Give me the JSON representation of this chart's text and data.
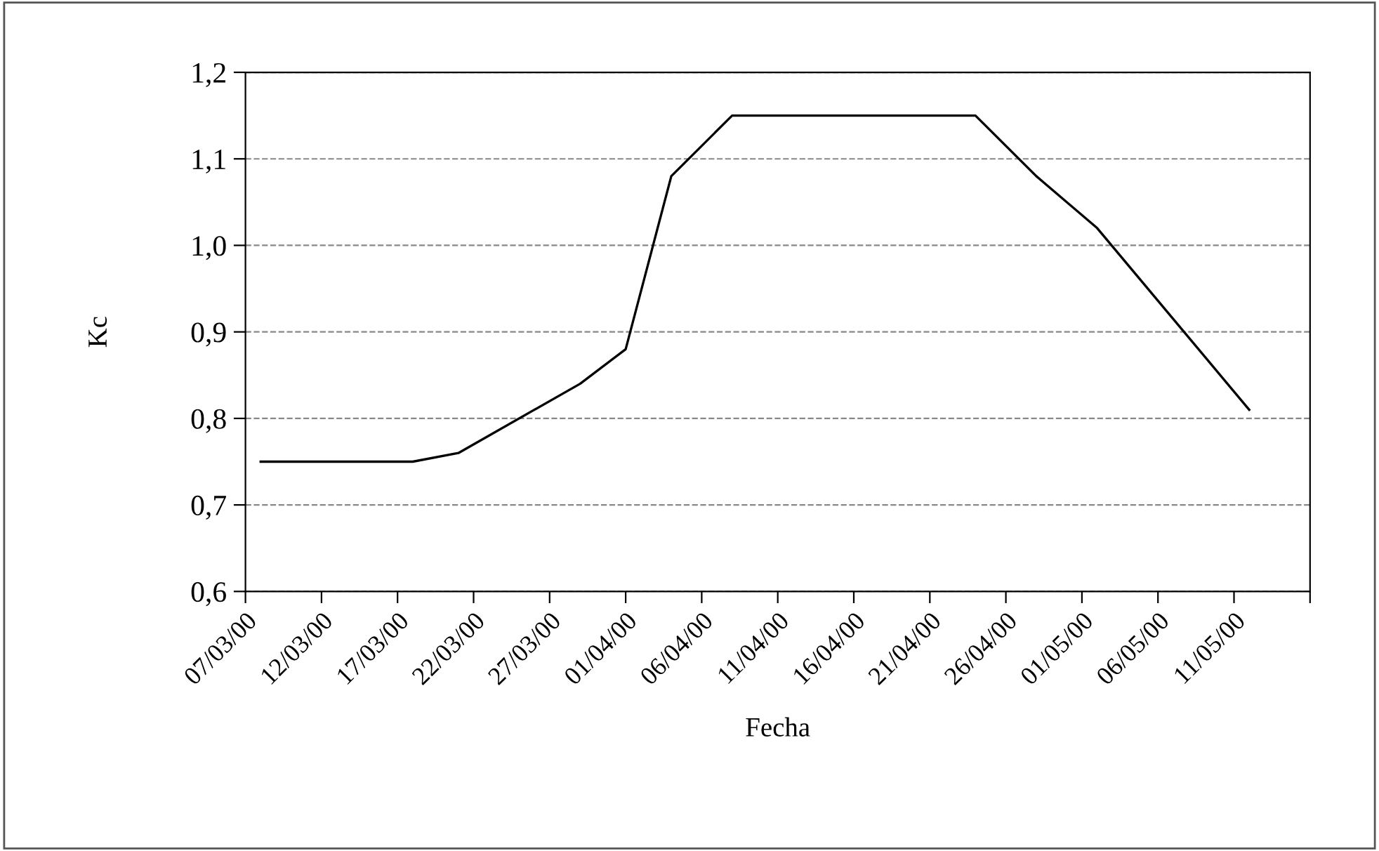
{
  "chart_data": {
    "type": "line",
    "xlabel": "Fecha",
    "ylabel": "Kc",
    "x": [
      "2000-03-08",
      "2000-03-18",
      "2000-03-21",
      "2000-03-29",
      "2000-04-01",
      "2000-04-04",
      "2000-04-08",
      "2000-04-24",
      "2000-04-28",
      "2000-05-02",
      "2000-05-12"
    ],
    "series": [
      {
        "color": "#000000",
        "values": [
          0.75,
          0.75,
          0.76,
          0.84,
          0.88,
          1.08,
          1.15,
          1.15,
          1.08,
          1.02,
          0.81
        ]
      }
    ],
    "xlim": [
      "2000-03-07",
      "2000-05-16"
    ],
    "xticks": [
      {
        "value": "2000-03-07",
        "label": "07/03/00"
      },
      {
        "value": "2000-03-12",
        "label": "12/03/00"
      },
      {
        "value": "2000-03-17",
        "label": "17/03/00"
      },
      {
        "value": "2000-03-22",
        "label": "22/03/00"
      },
      {
        "value": "2000-03-27",
        "label": "27/03/00"
      },
      {
        "value": "2000-04-01",
        "label": "01/04/00"
      },
      {
        "value": "2000-04-06",
        "label": "06/04/00"
      },
      {
        "value": "2000-04-11",
        "label": "11/04/00"
      },
      {
        "value": "2000-04-16",
        "label": "16/04/00"
      },
      {
        "value": "2000-04-21",
        "label": "21/04/00"
      },
      {
        "value": "2000-04-26",
        "label": "26/04/00"
      },
      {
        "value": "2000-05-01",
        "label": "01/05/00"
      },
      {
        "value": "2000-05-06",
        "label": "06/05/00"
      },
      {
        "value": "2000-05-11",
        "label": "11/05/00"
      },
      {
        "value": "2000-05-16",
        "label": null
      }
    ],
    "ylim": [
      0.6,
      1.2
    ],
    "yticks": [
      {
        "value": 0.6,
        "label": "0,6"
      },
      {
        "value": 0.7,
        "label": "0,7"
      },
      {
        "value": 0.8,
        "label": "0,8"
      },
      {
        "value": 0.9,
        "label": "0,9"
      },
      {
        "value": 1.0,
        "label": "1,0"
      },
      {
        "value": 1.1,
        "label": "1,1"
      },
      {
        "value": 1.2,
        "label": "1,2"
      }
    ],
    "grid": "y",
    "line_style": "solid",
    "marker": "none"
  }
}
